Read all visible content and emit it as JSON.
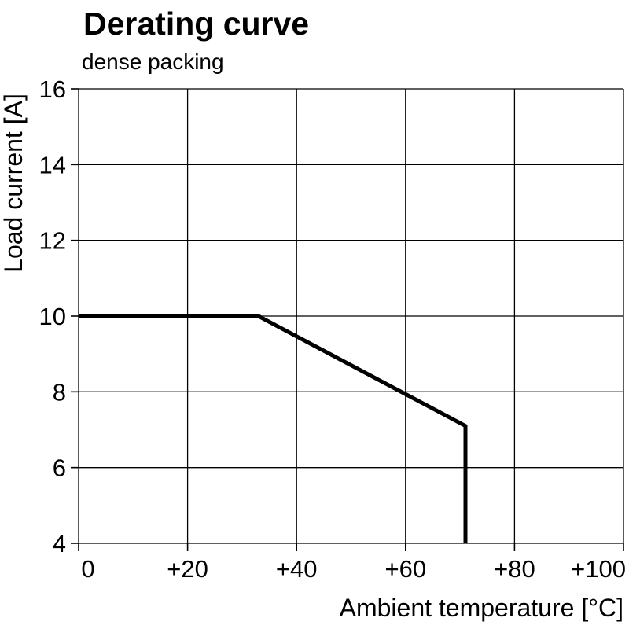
{
  "header": {
    "title": "Derating curve",
    "subtitle": "dense packing"
  },
  "chart_data": {
    "type": "line",
    "title": "Derating curve",
    "subtitle": "dense packing",
    "xlabel": "Ambient temperature [°C]",
    "ylabel": "Load current [A]",
    "xlim": [
      0,
      100
    ],
    "ylim": [
      4,
      16
    ],
    "x_ticks": [
      0,
      20,
      40,
      60,
      80,
      100
    ],
    "x_tick_labels": [
      "0",
      "+20",
      "+40",
      "+60",
      "+80",
      "+100"
    ],
    "y_ticks": [
      4,
      6,
      8,
      10,
      12,
      14,
      16
    ],
    "y_tick_labels": [
      "4",
      "6",
      "8",
      "10",
      "12",
      "14",
      "16"
    ],
    "grid": true,
    "legend": "none",
    "series": [
      {
        "name": "derating-curve",
        "color": "#000000",
        "width": 5,
        "points": [
          [
            0,
            10
          ],
          [
            33,
            10
          ],
          [
            71,
            7.1
          ],
          [
            71,
            4
          ]
        ]
      }
    ]
  },
  "colors": {
    "background": "#ffffff",
    "grid": "#000000",
    "line": "#000000",
    "text": "#000000"
  }
}
